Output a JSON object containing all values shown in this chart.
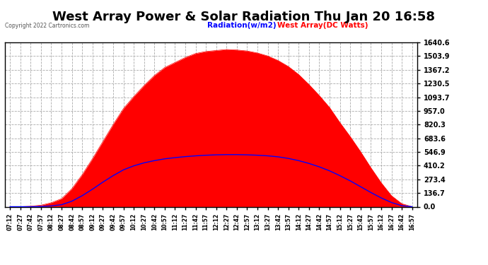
{
  "title": "West Array Power & Solar Radiation Thu Jan 20 16:58",
  "copyright": "Copyright 2022 Cartronics.com",
  "legend_radiation": "Radiation(w/m2)",
  "legend_west": "West Array(DC Watts)",
  "yticks": [
    0.0,
    136.7,
    273.4,
    410.2,
    546.9,
    683.6,
    820.3,
    957.0,
    1093.7,
    1230.5,
    1367.2,
    1503.9,
    1640.6
  ],
  "ymax": 1640.6,
  "ymin": 0.0,
  "background_color": "#ffffff",
  "plot_bg_color": "#ffffff",
  "grid_color": "#aaaaaa",
  "radiation_fill_color": "#ff0000",
  "radiation_line_color": "#ff0000",
  "west_line_color": "#0000ff",
  "title_fontsize": 13,
  "xtick_labels": [
    "07:12",
    "07:27",
    "07:42",
    "07:57",
    "08:12",
    "08:27",
    "08:42",
    "08:57",
    "09:12",
    "09:27",
    "09:42",
    "09:57",
    "10:12",
    "10:27",
    "10:42",
    "10:57",
    "11:12",
    "11:27",
    "11:42",
    "11:57",
    "12:12",
    "12:27",
    "12:42",
    "12:57",
    "13:12",
    "13:27",
    "13:42",
    "13:57",
    "14:12",
    "14:27",
    "14:42",
    "14:57",
    "15:12",
    "15:27",
    "15:42",
    "15:57",
    "16:12",
    "16:27",
    "16:42",
    "16:57"
  ],
  "radiation_values": [
    0,
    0,
    5,
    15,
    40,
    80,
    180,
    320,
    480,
    650,
    820,
    980,
    1100,
    1210,
    1310,
    1390,
    1440,
    1490,
    1530,
    1550,
    1560,
    1570,
    1565,
    1555,
    1535,
    1505,
    1460,
    1400,
    1320,
    1220,
    1110,
    990,
    840,
    700,
    550,
    390,
    240,
    110,
    30,
    0
  ],
  "west_values": [
    0,
    0,
    0,
    2,
    8,
    20,
    55,
    110,
    175,
    245,
    310,
    368,
    408,
    438,
    460,
    478,
    490,
    500,
    508,
    514,
    518,
    520,
    520,
    518,
    514,
    508,
    498,
    482,
    460,
    432,
    398,
    358,
    310,
    258,
    200,
    142,
    88,
    42,
    10,
    0
  ]
}
